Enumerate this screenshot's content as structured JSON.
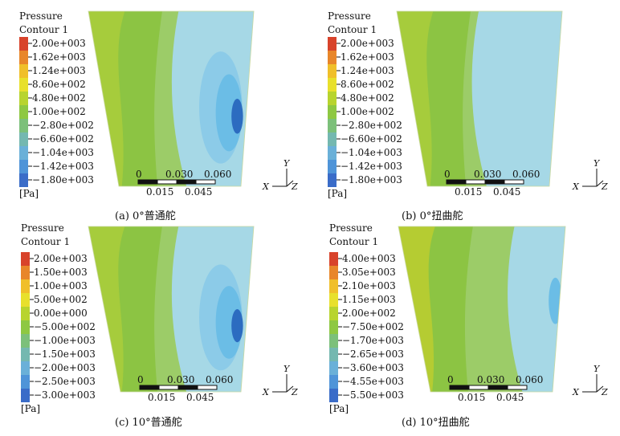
{
  "panels": [
    {
      "caption": "(a) 0°普通舵",
      "legend_title_1": "Pressure",
      "legend_title_2": "Contour 1",
      "unit": "[Pa]",
      "ticks": [
        "2.00e+003",
        "1.62e+003",
        "1.24e+003",
        "8.60e+002",
        "4.80e+002",
        "1.00e+002",
        "−2.80e+002",
        "−6.60e+002",
        "−1.04e+003",
        "−1.42e+003",
        "−1.80e+003"
      ],
      "scale_top": [
        "0",
        "0.030",
        "0.060"
      ],
      "scale_bottom": [
        "0.015",
        "0.045"
      ]
    },
    {
      "caption": "(b) 0°扭曲舵",
      "legend_title_1": "Pressure",
      "legend_title_2": "Contour 1",
      "unit": "[Pa]",
      "ticks": [
        "2.00e+003",
        "1.62e+003",
        "1.24e+003",
        "8.60e+002",
        "4.80e+002",
        "1.00e+002",
        "−2.80e+002",
        "−6.60e+002",
        "−1.04e+003",
        "−1.42e+003",
        "−1.80e+003"
      ],
      "scale_top": [
        "0",
        "0.030",
        "0.060"
      ],
      "scale_bottom": [
        "0.015",
        "0.045"
      ]
    },
    {
      "caption": "(c) 10°普通舵",
      "legend_title_1": "Pressure",
      "legend_title_2": "Contour 1",
      "unit": "[Pa]",
      "ticks": [
        "2.00e+003",
        "1.50e+003",
        "1.00e+003",
        "5.00e+002",
        "0.00e+000",
        "−5.00e+002",
        "−1.00e+003",
        "−1.50e+003",
        "−2.00e+003",
        "−2.50e+003",
        "−3.00e+003"
      ],
      "scale_top": [
        "0",
        "0.030",
        "0.060"
      ],
      "scale_bottom": [
        "0.015",
        "0.045"
      ]
    },
    {
      "caption": "(d) 10°扭曲舵",
      "legend_title_1": "Pressure",
      "legend_title_2": "Contour 1",
      "unit": "[Pa]",
      "ticks": [
        "4.00e+003",
        "3.05e+003",
        "2.10e+003",
        "1.15e+003",
        "2.00e+002",
        "−7.50e+002",
        "−1.70e+003",
        "−2.65e+003",
        "−3.60e+003",
        "−4.55e+003",
        "−5.50e+003"
      ],
      "scale_top": [
        "0",
        "0.030",
        "0.060"
      ],
      "scale_bottom": [
        "0.015",
        "0.045"
      ]
    }
  ],
  "axes": {
    "x": "X",
    "y": "Y",
    "z": "Z"
  },
  "colormap": [
    "#d8432b",
    "#e8862a",
    "#f0bf2a",
    "#e8e02c",
    "#b8d42e",
    "#8ec842",
    "#7cc07a",
    "#74b8b0",
    "#6ab0d8",
    "#4f94d8",
    "#3a6cc8"
  ],
  "contour_colors": {
    "green": "#8cc443",
    "yellow_green": "#b5cc32",
    "light_green": "#9ccc68",
    "light_blue": "#a6d8e6",
    "mid_blue": "#6bbde6",
    "dark_blue": "#2c6cc0"
  }
}
